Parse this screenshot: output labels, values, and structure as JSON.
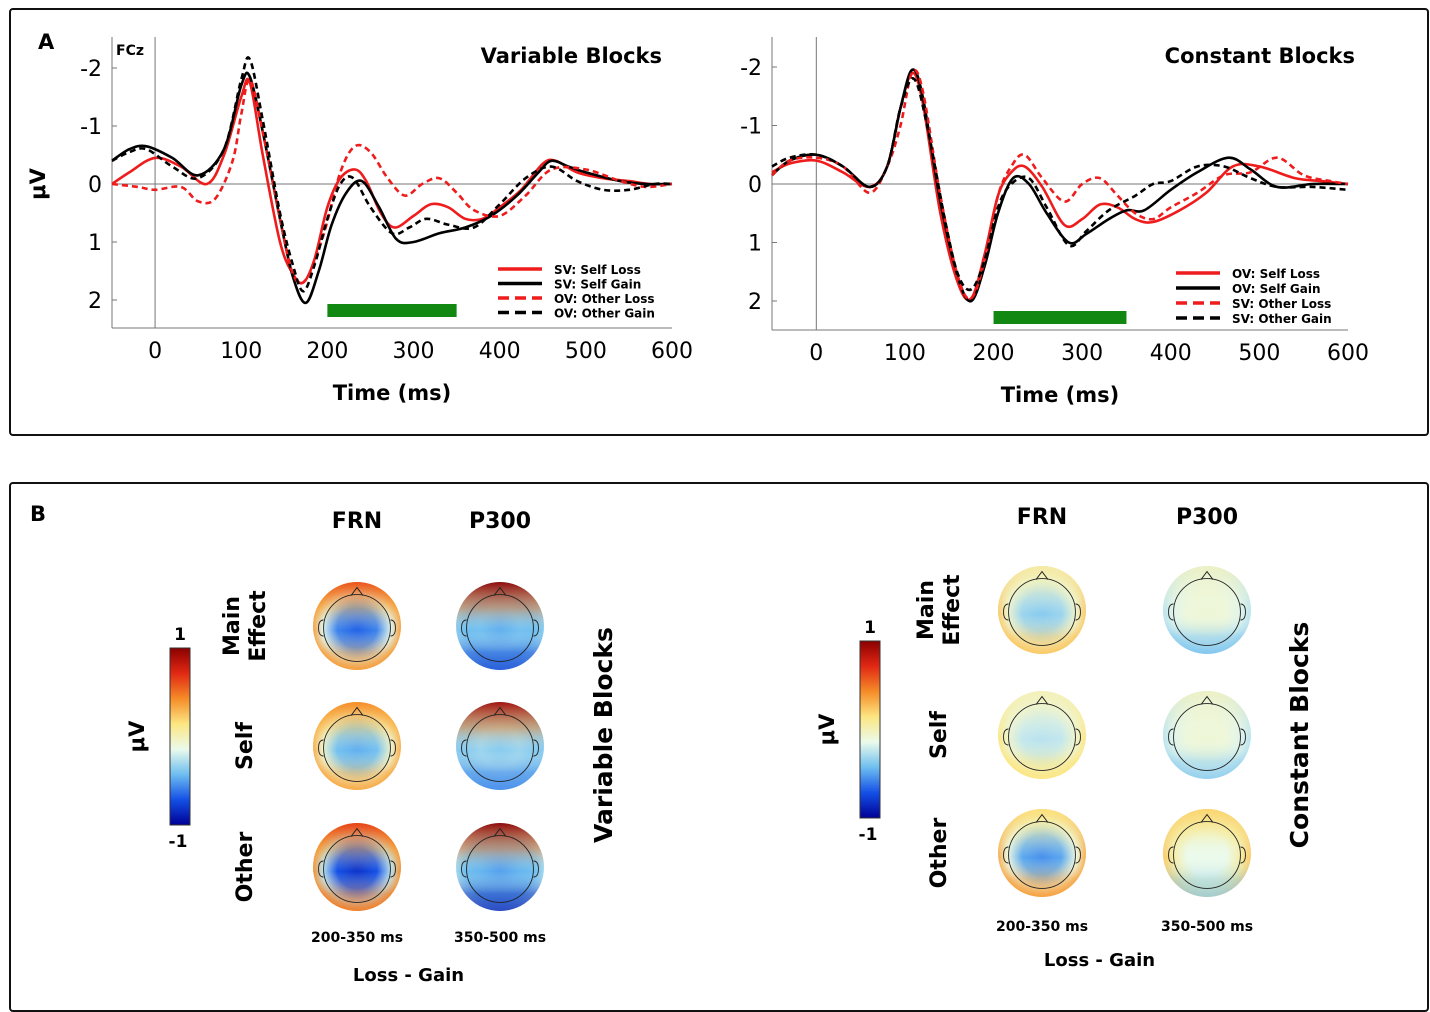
{
  "panel_a_label": "A",
  "panel_b_label": "B",
  "chart_data": [
    {
      "type": "line",
      "title": "Variable Blocks",
      "annotation": "FCz",
      "xlabel": "Time (ms)",
      "ylabel": "μV",
      "xlim": [
        -50,
        600
      ],
      "ylim": [
        2.5,
        -2.5
      ],
      "y_inverted": true,
      "xticks": [
        0,
        100,
        200,
        300,
        400,
        500,
        600
      ],
      "yticks": [
        -2,
        -1,
        0,
        1,
        2
      ],
      "significance_window": [
        200,
        350
      ],
      "significance_color": "#118811",
      "legend_position": "bottom-right",
      "series": [
        {
          "name": "SV: Self Loss",
          "color": "#ee1c1c",
          "dash": "solid",
          "x": [
            -50,
            -30,
            0,
            30,
            60,
            80,
            100,
            110,
            125,
            145,
            160,
            172,
            185,
            200,
            215,
            232,
            245,
            262,
            278,
            300,
            320,
            340,
            360,
            380,
            400,
            425,
            450,
            465,
            490,
            520,
            550,
            575,
            600
          ],
          "y": [
            0.0,
            -0.2,
            -0.45,
            -0.3,
            0.0,
            -0.5,
            -1.5,
            -1.75,
            -0.5,
            1.0,
            1.55,
            1.7,
            1.3,
            0.4,
            -0.1,
            -0.25,
            -0.05,
            0.5,
            0.75,
            0.55,
            0.35,
            0.4,
            0.6,
            0.6,
            0.4,
            0.1,
            -0.35,
            -0.4,
            -0.2,
            -0.1,
            -0.05,
            0.0,
            0.0
          ]
        },
        {
          "name": "SV: Self Gain",
          "color": "#000000",
          "dash": "solid",
          "x": [
            -50,
            -30,
            -10,
            20,
            50,
            80,
            100,
            110,
            125,
            145,
            160,
            175,
            190,
            205,
            222,
            240,
            260,
            280,
            300,
            330,
            360,
            390,
            420,
            445,
            460,
            480,
            500,
            540,
            570,
            600
          ],
          "y": [
            -0.4,
            -0.6,
            -0.65,
            -0.45,
            -0.15,
            -0.6,
            -1.7,
            -1.85,
            -0.9,
            0.6,
            1.6,
            2.05,
            1.5,
            0.7,
            0.15,
            -0.05,
            0.4,
            0.95,
            1.0,
            0.85,
            0.75,
            0.55,
            0.2,
            -0.2,
            -0.4,
            -0.3,
            -0.2,
            -0.05,
            0.0,
            0.0
          ]
        },
        {
          "name": "OV: Other Loss",
          "color": "#ee1c1c",
          "dash": "dashed",
          "x": [
            -50,
            -20,
            0,
            30,
            50,
            70,
            90,
            100,
            110,
            125,
            145,
            160,
            175,
            195,
            215,
            232,
            250,
            270,
            290,
            310,
            330,
            350,
            370,
            400,
            430,
            460,
            500,
            540,
            570,
            600
          ],
          "y": [
            0.0,
            0.05,
            0.1,
            0.05,
            0.3,
            0.25,
            -0.4,
            -1.2,
            -1.8,
            -0.9,
            0.6,
            1.55,
            1.65,
            0.9,
            -0.2,
            -0.65,
            -0.55,
            -0.1,
            0.2,
            0.0,
            -0.1,
            0.15,
            0.45,
            0.55,
            0.2,
            -0.25,
            -0.25,
            -0.05,
            0.05,
            0.0
          ]
        },
        {
          "name": "OV: Other Gain",
          "color": "#000000",
          "dash": "dashed",
          "x": [
            -50,
            -30,
            -10,
            20,
            50,
            80,
            100,
            110,
            125,
            145,
            160,
            172,
            185,
            200,
            215,
            230,
            250,
            275,
            295,
            315,
            340,
            370,
            400,
            430,
            460,
            490,
            520,
            550,
            580,
            600
          ],
          "y": [
            -0.4,
            -0.55,
            -0.6,
            -0.3,
            -0.1,
            -0.6,
            -1.8,
            -2.15,
            -1.1,
            0.5,
            1.4,
            1.85,
            1.4,
            0.6,
            0.0,
            -0.1,
            0.4,
            0.85,
            0.75,
            0.6,
            0.7,
            0.75,
            0.35,
            -0.1,
            -0.3,
            -0.05,
            0.1,
            0.1,
            0.0,
            0.0
          ]
        }
      ]
    },
    {
      "type": "line",
      "title": "Constant Blocks",
      "xlabel": "Time (ms)",
      "ylabel": "",
      "xlim": [
        -50,
        600
      ],
      "ylim": [
        2.5,
        -2.5
      ],
      "y_inverted": true,
      "xticks": [
        0,
        100,
        200,
        300,
        400,
        500,
        600
      ],
      "yticks": [
        -2,
        -1,
        0,
        1,
        2
      ],
      "significance_window": [
        200,
        350
      ],
      "significance_color": "#118811",
      "legend_position": "bottom-right",
      "series": [
        {
          "name": "OV: Self Loss",
          "color": "#ee1c1c",
          "dash": "solid",
          "x": [
            -50,
            -30,
            0,
            30,
            60,
            80,
            95,
            108,
            120,
            140,
            160,
            175,
            190,
            205,
            220,
            235,
            255,
            280,
            300,
            320,
            340,
            360,
            380,
            410,
            440,
            470,
            500,
            540,
            570,
            600
          ],
          "y": [
            -0.2,
            -0.35,
            -0.4,
            -0.2,
            0.05,
            -0.3,
            -1.3,
            -1.9,
            -1.4,
            0.5,
            1.7,
            1.95,
            1.2,
            0.2,
            -0.2,
            -0.3,
            0.05,
            0.7,
            0.6,
            0.35,
            0.4,
            0.6,
            0.65,
            0.45,
            0.15,
            -0.3,
            -0.3,
            -0.1,
            -0.05,
            0.0
          ]
        },
        {
          "name": "OV: Self Gain",
          "color": "#000000",
          "dash": "solid",
          "x": [
            -50,
            -30,
            0,
            30,
            60,
            80,
            95,
            108,
            120,
            140,
            160,
            175,
            190,
            205,
            222,
            240,
            260,
            285,
            305,
            330,
            350,
            370,
            400,
            430,
            465,
            490,
            520,
            560,
            600
          ],
          "y": [
            -0.15,
            -0.4,
            -0.5,
            -0.3,
            0.05,
            -0.3,
            -1.3,
            -1.95,
            -1.5,
            0.3,
            1.6,
            2.0,
            1.4,
            0.5,
            -0.1,
            0.0,
            0.5,
            1.0,
            0.85,
            0.6,
            0.45,
            0.45,
            0.1,
            -0.2,
            -0.45,
            -0.25,
            0.05,
            0.0,
            0.0
          ]
        },
        {
          "name": "SV: Other Loss",
          "color": "#ee1c1c",
          "dash": "dashed",
          "x": [
            -50,
            -30,
            0,
            30,
            60,
            80,
            95,
            108,
            120,
            140,
            160,
            175,
            190,
            205,
            220,
            235,
            255,
            280,
            300,
            320,
            340,
            360,
            380,
            400,
            430,
            460,
            490,
            520,
            550,
            580,
            600
          ],
          "y": [
            -0.15,
            -0.4,
            -0.45,
            -0.3,
            0.15,
            -0.3,
            -1.0,
            -1.9,
            -1.6,
            0.2,
            1.6,
            1.95,
            1.3,
            0.2,
            -0.3,
            -0.5,
            -0.1,
            0.3,
            0.0,
            -0.1,
            0.2,
            0.5,
            0.6,
            0.4,
            0.15,
            -0.15,
            -0.2,
            -0.45,
            -0.15,
            -0.05,
            0.0
          ]
        },
        {
          "name": "SV: Other Gain",
          "color": "#000000",
          "dash": "dashed",
          "x": [
            -50,
            -30,
            0,
            30,
            60,
            80,
            95,
            110,
            125,
            145,
            160,
            175,
            190,
            205,
            220,
            240,
            260,
            285,
            305,
            330,
            360,
            380,
            400,
            430,
            460,
            490,
            520,
            560,
            600
          ],
          "y": [
            -0.3,
            -0.45,
            -0.5,
            -0.3,
            0.05,
            -0.3,
            -1.3,
            -1.8,
            -1.0,
            0.6,
            1.55,
            1.8,
            1.3,
            0.4,
            0.0,
            -0.1,
            0.4,
            1.05,
            0.8,
            0.45,
            0.2,
            0.0,
            -0.05,
            -0.3,
            -0.3,
            -0.1,
            0.05,
            0.05,
            0.1
          ]
        }
      ]
    },
    {
      "type": "heatmap",
      "title": "Variable Blocks",
      "columns": [
        "FRN",
        "P300"
      ],
      "rows": [
        "Main Effect",
        "Self",
        "Other"
      ],
      "time_windows": [
        "200-350 ms",
        "350-500 ms"
      ],
      "xlabel": "Loss - Gain",
      "colorbar": {
        "label": "μV",
        "max": "1",
        "min": "-1"
      },
      "maps": [
        [
          {
            "center": -0.55,
            "edge": 0.5,
            "front": 0.7,
            "back": 0.5
          },
          {
            "center": -0.3,
            "edge": -0.2,
            "front": 1.0,
            "back": -0.7
          }
        ],
        [
          {
            "center": -0.3,
            "edge": 0.45,
            "front": 0.55,
            "back": 0.45
          },
          {
            "center": -0.2,
            "edge": -0.2,
            "front": 0.95,
            "back": -0.45
          }
        ],
        [
          {
            "center": -0.75,
            "edge": 0.55,
            "front": 0.75,
            "back": 0.6
          },
          {
            "center": -0.35,
            "edge": -0.15,
            "front": 1.0,
            "back": -0.85
          }
        ]
      ]
    },
    {
      "type": "heatmap",
      "title": "Constant Blocks",
      "columns": [
        "FRN",
        "P300"
      ],
      "rows": [
        "Main Effect",
        "Self",
        "Other"
      ],
      "time_windows": [
        "200-350 ms",
        "350-500 ms"
      ],
      "xlabel": "Loss - Gain",
      "colorbar": {
        "label": "μV",
        "max": "1",
        "min": "-1"
      },
      "maps": [
        [
          {
            "center": -0.2,
            "edge": 0.35,
            "front": 0.15,
            "back": 0.35
          },
          {
            "center": 0.05,
            "edge": -0.1,
            "front": 0.1,
            "back": -0.25
          }
        ],
        [
          {
            "center": -0.1,
            "edge": 0.25,
            "front": 0.1,
            "back": 0.25
          },
          {
            "center": 0.05,
            "edge": -0.1,
            "front": 0.1,
            "back": -0.2
          }
        ],
        [
          {
            "center": -0.4,
            "edge": 0.45,
            "front": 0.25,
            "back": 0.5
          },
          {
            "center": 0.0,
            "edge": 0.35,
            "front": 0.3,
            "back": -0.2
          }
        ]
      ]
    }
  ]
}
